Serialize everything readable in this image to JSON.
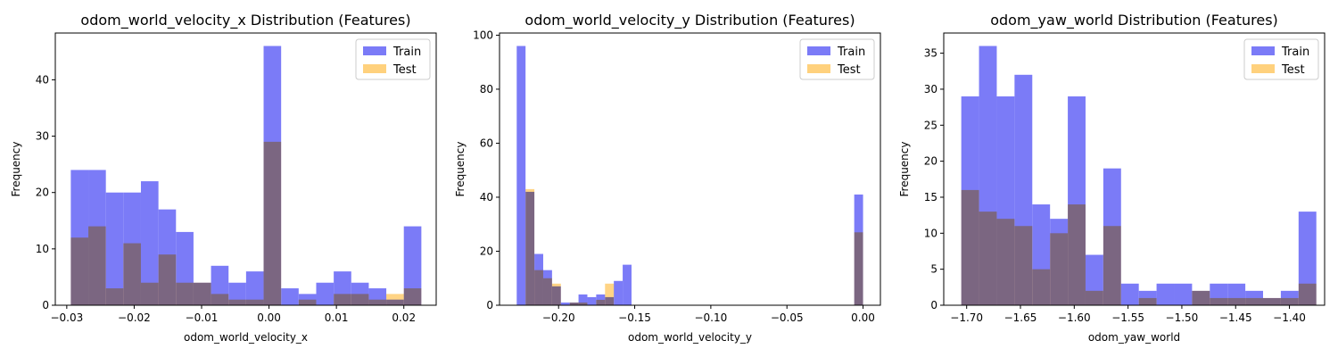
{
  "chart_data": [
    {
      "type": "bar",
      "histogram": true,
      "title": "odom_world_velocity_x Distribution (Features)",
      "xlabel": "odom_world_velocity_x",
      "ylabel": "Frequency",
      "xlim": [
        -0.0317,
        0.0248
      ],
      "ylim": [
        0,
        48.3
      ],
      "xticks": [
        -0.03,
        -0.02,
        -0.01,
        0.0,
        0.01,
        0.02
      ],
      "xtick_labels": [
        "−0.03",
        "−0.02",
        "−0.01",
        "0.00",
        "0.01",
        "0.02"
      ],
      "yticks": [
        0,
        10,
        20,
        30,
        40
      ],
      "yticks_labels": [
        "0",
        "10",
        "20",
        "30",
        "40"
      ],
      "legend": "top-right",
      "grid": false,
      "series": [
        {
          "name": "Train",
          "color": "#7b7bf7",
          "bins": [
            [
              -0.0294,
              -0.0268,
              24
            ],
            [
              -0.0268,
              -0.0242,
              24
            ],
            [
              -0.0242,
              -0.0216,
              20
            ],
            [
              -0.0216,
              -0.019,
              20
            ],
            [
              -0.019,
              -0.0164,
              22
            ],
            [
              -0.0164,
              -0.0138,
              17
            ],
            [
              -0.0138,
              -0.0112,
              13
            ],
            [
              -0.0112,
              -0.0086,
              4
            ],
            [
              -0.0086,
              -0.006,
              7
            ],
            [
              -0.006,
              -0.0034,
              4
            ],
            [
              -0.0034,
              -0.0008,
              6
            ],
            [
              -0.0008,
              0.0018,
              46
            ],
            [
              0.0018,
              0.0044,
              3
            ],
            [
              0.0044,
              0.007,
              2
            ],
            [
              0.007,
              0.0096,
              4
            ],
            [
              0.0096,
              0.0122,
              6
            ],
            [
              0.0122,
              0.0148,
              4
            ],
            [
              0.0148,
              0.0174,
              3
            ],
            [
              0.0174,
              0.02,
              1
            ],
            [
              0.02,
              0.0226,
              14
            ]
          ]
        },
        {
          "name": "Test",
          "color": "#ffc966",
          "bins": [
            [
              -0.0294,
              -0.0268,
              12
            ],
            [
              -0.0268,
              -0.0242,
              14
            ],
            [
              -0.0242,
              -0.0216,
              3
            ],
            [
              -0.0216,
              -0.019,
              11
            ],
            [
              -0.019,
              -0.0164,
              4
            ],
            [
              -0.0164,
              -0.0138,
              9
            ],
            [
              -0.0138,
              -0.0112,
              4
            ],
            [
              -0.0112,
              -0.0086,
              4
            ],
            [
              -0.0086,
              -0.006,
              2
            ],
            [
              -0.006,
              -0.0034,
              1
            ],
            [
              -0.0034,
              -0.0008,
              1
            ],
            [
              -0.0008,
              0.0018,
              29
            ],
            [
              0.0018,
              0.0044,
              0
            ],
            [
              0.0044,
              0.007,
              1
            ],
            [
              0.007,
              0.0096,
              0
            ],
            [
              0.0096,
              0.0122,
              2
            ],
            [
              0.0122,
              0.0148,
              2
            ],
            [
              0.0148,
              0.0174,
              1
            ],
            [
              0.0174,
              0.02,
              2
            ],
            [
              0.02,
              0.0226,
              3
            ]
          ]
        }
      ]
    },
    {
      "type": "bar",
      "histogram": true,
      "title": "odom_world_velocity_y Distribution (Features)",
      "xlabel": "odom_world_velocity_y",
      "ylabel": "Frequency",
      "xlim": [
        -0.2388,
        0.0114
      ],
      "ylim": [
        0,
        100.8
      ],
      "xticks": [
        -0.2,
        -0.15,
        -0.1,
        -0.05,
        0.0
      ],
      "xtick_labels": [
        "−0.20",
        "−0.15",
        "−0.10",
        "−0.05",
        "0.00"
      ],
      "yticks": [
        0,
        20,
        40,
        60,
        80,
        100
      ],
      "yticks_labels": [
        "0",
        "20",
        "40",
        "60",
        "80",
        "100"
      ],
      "legend": "top-right",
      "grid": false,
      "series": [
        {
          "name": "Train",
          "color": "#7b7bf7",
          "bins": [
            [
              -0.2275,
              -0.2217,
              96
            ],
            [
              -0.2217,
              -0.2159,
              42
            ],
            [
              -0.2159,
              -0.2101,
              19
            ],
            [
              -0.2101,
              -0.2043,
              13
            ],
            [
              -0.2043,
              -0.1985,
              7
            ],
            [
              -0.1985,
              -0.1927,
              1
            ],
            [
              -0.1927,
              -0.1869,
              1
            ],
            [
              -0.1869,
              -0.1811,
              4
            ],
            [
              -0.1811,
              -0.1753,
              3
            ],
            [
              -0.1753,
              -0.1695,
              4
            ],
            [
              -0.1695,
              -0.1637,
              3
            ],
            [
              -0.1637,
              -0.1579,
              9
            ],
            [
              -0.1579,
              -0.1521,
              15
            ],
            [
              -0.1521,
              -0.1463,
              0
            ],
            [
              -0.1463,
              -0.1405,
              0
            ],
            [
              -0.1405,
              -0.1347,
              0
            ],
            [
              -0.1347,
              -0.1289,
              0
            ],
            [
              -0.1289,
              -0.1231,
              0
            ],
            [
              -0.1231,
              -0.1173,
              0
            ],
            [
              -0.0058,
              0.0,
              41
            ]
          ]
        },
        {
          "name": "Test",
          "color": "#ffc966",
          "bins": [
            [
              -0.2217,
              -0.2159,
              43
            ],
            [
              -0.2159,
              -0.2101,
              13
            ],
            [
              -0.2101,
              -0.2043,
              10
            ],
            [
              -0.2043,
              -0.1985,
              8
            ],
            [
              -0.1985,
              -0.1927,
              0
            ],
            [
              -0.1927,
              -0.1869,
              1
            ],
            [
              -0.1869,
              -0.1811,
              1
            ],
            [
              -0.1811,
              -0.1753,
              0
            ],
            [
              -0.1753,
              -0.1695,
              2
            ],
            [
              -0.1695,
              -0.1637,
              8
            ],
            [
              -0.0058,
              0.0,
              27
            ]
          ]
        }
      ]
    },
    {
      "type": "bar",
      "histogram": true,
      "title": "odom_yaw_world Distribution (Features)",
      "xlabel": "odom_yaw_world",
      "ylabel": "Frequency",
      "xlim": [
        -1.7213,
        -1.3673
      ],
      "ylim": [
        0,
        37.8
      ],
      "xticks": [
        -1.7,
        -1.65,
        -1.6,
        -1.55,
        -1.5,
        -1.45,
        -1.4
      ],
      "xtick_labels": [
        "−1.70",
        "−1.65",
        "−1.60",
        "−1.55",
        "−1.50",
        "−1.45",
        "−1.40"
      ],
      "yticks": [
        0,
        5,
        10,
        15,
        20,
        25,
        30,
        35
      ],
      "yticks_labels": [
        "0",
        "5",
        "10",
        "15",
        "20",
        "25",
        "30",
        "35"
      ],
      "legend": "top-right",
      "grid": false,
      "series": [
        {
          "name": "Train",
          "color": "#7b7bf7",
          "bins": [
            [
              -1.705,
              -1.6885,
              29
            ],
            [
              -1.6885,
              -1.672,
              36
            ],
            [
              -1.672,
              -1.6555,
              29
            ],
            [
              -1.6555,
              -1.639,
              32
            ],
            [
              -1.639,
              -1.6225,
              14
            ],
            [
              -1.6225,
              -1.606,
              12
            ],
            [
              -1.606,
              -1.5895,
              29
            ],
            [
              -1.5895,
              -1.573,
              7
            ],
            [
              -1.573,
              -1.5565,
              19
            ],
            [
              -1.5565,
              -1.54,
              3
            ],
            [
              -1.54,
              -1.5235,
              2
            ],
            [
              -1.5235,
              -1.507,
              3
            ],
            [
              -1.507,
              -1.4905,
              3
            ],
            [
              -1.4905,
              -1.474,
              2
            ],
            [
              -1.474,
              -1.4575,
              3
            ],
            [
              -1.4575,
              -1.441,
              3
            ],
            [
              -1.441,
              -1.4245,
              2
            ],
            [
              -1.4245,
              -1.408,
              1
            ],
            [
              -1.408,
              -1.3915,
              2
            ],
            [
              -1.3915,
              -1.375,
              13
            ]
          ]
        },
        {
          "name": "Test",
          "color": "#ffc966",
          "bins": [
            [
              -1.705,
              -1.6885,
              16
            ],
            [
              -1.6885,
              -1.672,
              13
            ],
            [
              -1.672,
              -1.6555,
              12
            ],
            [
              -1.6555,
              -1.639,
              11
            ],
            [
              -1.639,
              -1.6225,
              5
            ],
            [
              -1.6225,
              -1.606,
              10
            ],
            [
              -1.606,
              -1.5895,
              14
            ],
            [
              -1.5895,
              -1.573,
              2
            ],
            [
              -1.573,
              -1.5565,
              11
            ],
            [
              -1.5565,
              -1.54,
              0
            ],
            [
              -1.54,
              -1.5235,
              1
            ],
            [
              -1.5235,
              -1.507,
              0
            ],
            [
              -1.507,
              -1.4905,
              0
            ],
            [
              -1.4905,
              -1.474,
              2
            ],
            [
              -1.474,
              -1.4575,
              1
            ],
            [
              -1.4575,
              -1.441,
              1
            ],
            [
              -1.441,
              -1.4245,
              1
            ],
            [
              -1.4245,
              -1.408,
              1
            ],
            [
              -1.408,
              -1.3915,
              1
            ],
            [
              -1.3915,
              -1.375,
              3
            ]
          ]
        }
      ]
    }
  ]
}
